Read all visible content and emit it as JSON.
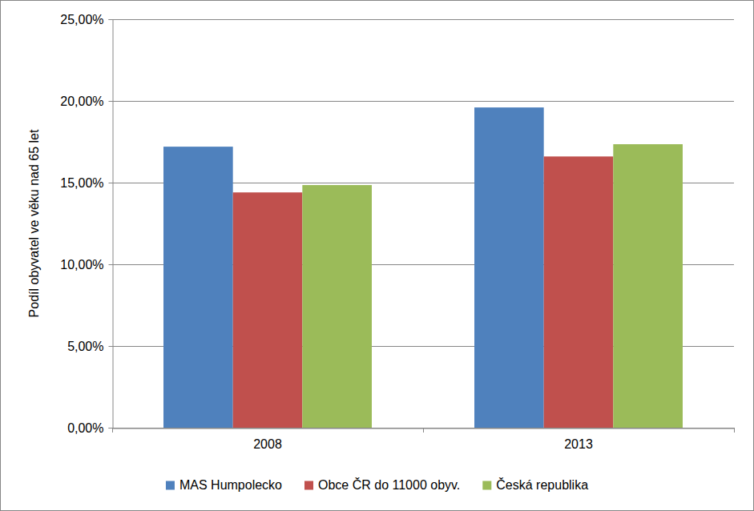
{
  "chart_data": {
    "type": "bar",
    "y_label": "Podíl obyvatel ve věku nad 65 let",
    "categories": [
      "2008",
      "2013"
    ],
    "series": [
      {
        "name": "MAS Humpolecko",
        "color": "#4f81bd",
        "values": [
          17.2,
          19.6
        ]
      },
      {
        "name": "Obce ČR do 11000 obyv.",
        "color": "#c0504d",
        "values": [
          14.4,
          16.6
        ]
      },
      {
        "name": "Česká republika",
        "color": "#9bbb59",
        "values": [
          14.85,
          17.35
        ]
      }
    ],
    "ylim": [
      0,
      25
    ],
    "yticks": [
      {
        "value": 0,
        "label": "0,00%"
      },
      {
        "value": 5,
        "label": "5,00%"
      },
      {
        "value": 10,
        "label": "10,00%"
      },
      {
        "value": 15,
        "label": "15,00%"
      },
      {
        "value": 20,
        "label": "20,00%"
      },
      {
        "value": 25,
        "label": "25,00%"
      }
    ],
    "grid": true,
    "legend": "bottom"
  }
}
